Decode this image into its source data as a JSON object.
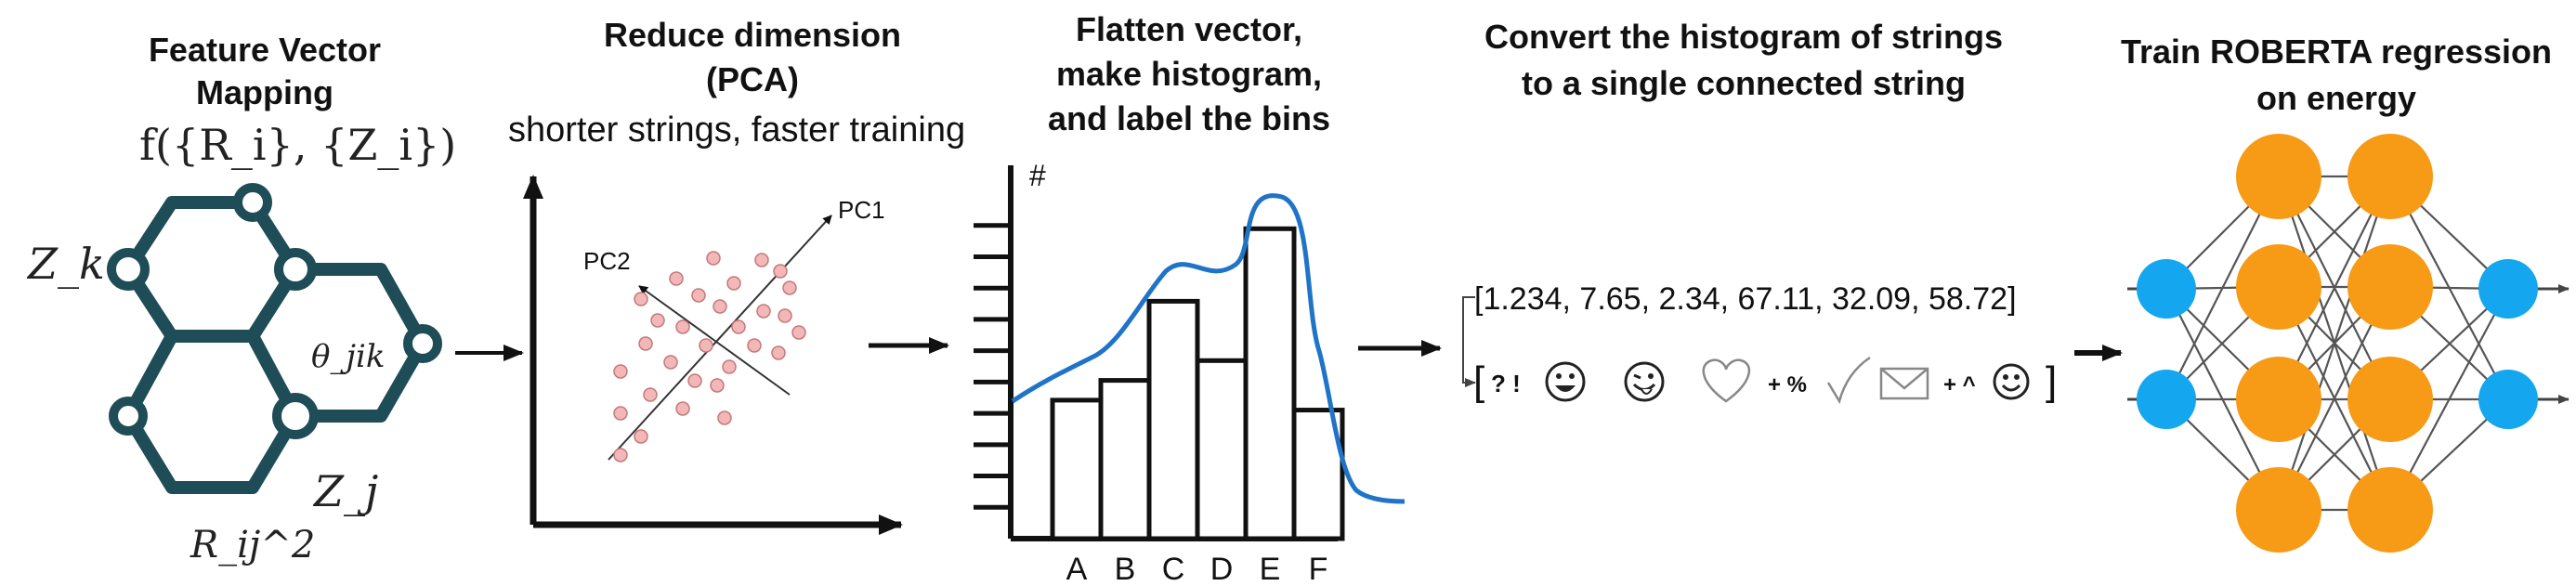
{
  "panels": {
    "feature_mapping": {
      "title_line1": "Feature Vector",
      "title_line2": "Mapping",
      "formula": "f({R_i}, {Z_i})",
      "labels": {
        "zk": "Z_k",
        "zj": "Z_j",
        "theta": "θ_jik",
        "rij": "R_ij^2"
      }
    },
    "pca": {
      "title_line1": "Reduce dimension",
      "title_line2": "(PCA)",
      "subtitle": "shorter strings, faster training",
      "pc1": "PC1",
      "pc2": "PC2"
    },
    "histogram": {
      "title_line1": "Flatten vector,",
      "title_line2": "make histogram,",
      "title_line3": "and label the bins",
      "y_symbol": "#"
    },
    "strings": {
      "title_line1": "Convert the histogram of strings",
      "title_line2": "to a single connected string",
      "vector_text": "[1.234, 7.65, 2.34, 67.11, 32.09, 58.72]",
      "string_tokens": [
        "? !",
        "+ %",
        "+ ^"
      ]
    },
    "roberta": {
      "title_line1": "Train ROBERTA regression",
      "title_line2": "on energy"
    }
  },
  "chart_data": {
    "type": "bar",
    "categories": [
      "A",
      "B",
      "C",
      "D",
      "E",
      "F"
    ],
    "values": [
      4.2,
      4.8,
      7.2,
      5.4,
      9.4,
      3.9
    ],
    "ylabel": "#",
    "ylim": [
      0,
      10
    ],
    "density_curve": true
  },
  "colors": {
    "molecule": "#1f4d57",
    "scatter_points": "#f4b7b7",
    "density_curve": "#1f74c8",
    "nn_input_output": "#14a6ef",
    "nn_hidden": "#f79a16"
  },
  "icons": [
    "grinning-face-icon",
    "winking-tongue-face-icon",
    "heart-outline-icon",
    "check-mark-icon",
    "envelope-icon",
    "smiley-face-icon"
  ]
}
